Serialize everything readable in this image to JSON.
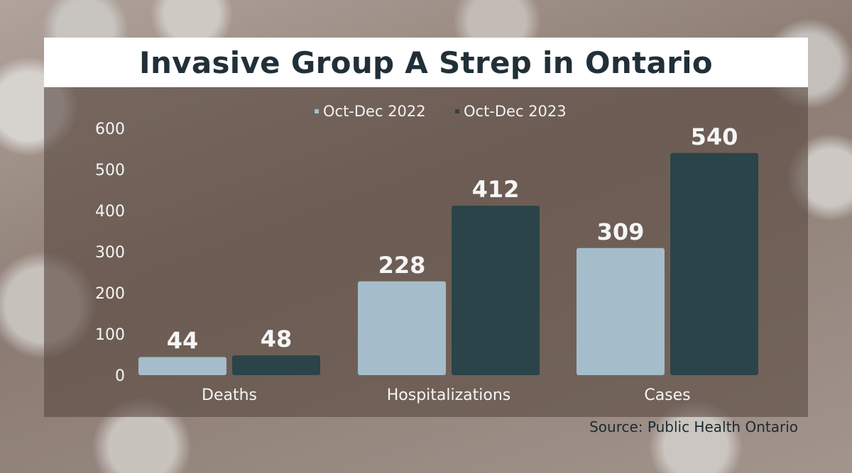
{
  "title": "Invasive Group A Strep in Ontario",
  "source": "Source: Public Health Ontario",
  "colors": {
    "series1": "#a5bdca",
    "series2": "#2a4449",
    "text": "#f5f5f5",
    "title": "#213038"
  },
  "chart_data": {
    "type": "bar",
    "categories": [
      "Deaths",
      "Hospitalizations",
      "Cases"
    ],
    "series": [
      {
        "name": "Oct-Dec 2022",
        "values": [
          44,
          228,
          309
        ]
      },
      {
        "name": "Oct-Dec 2023",
        "values": [
          48,
          412,
          540
        ]
      }
    ],
    "yticks": [
      "0",
      "100",
      "200",
      "300",
      "400",
      "500",
      "600"
    ],
    "ylim": [
      0,
      600
    ],
    "legend": "top-center",
    "grid": false,
    "xlabel": "",
    "ylabel": ""
  }
}
